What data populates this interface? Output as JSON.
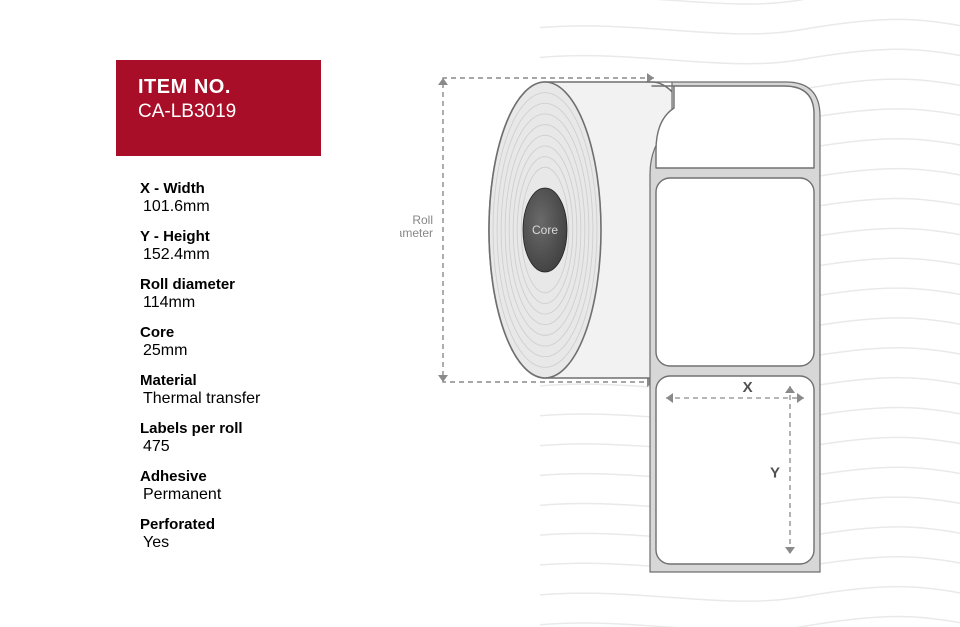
{
  "header": {
    "title": "ITEM NO.",
    "code": "CA-LB3019",
    "bg_color": "#a80e28",
    "text_color": "#ffffff"
  },
  "specs": [
    {
      "label": "X - Width",
      "value": "101.6mm"
    },
    {
      "label": "Y - Height",
      "value": "152.4mm"
    },
    {
      "label": "Roll diameter",
      "value": "114mm"
    },
    {
      "label": "Core",
      "value": "25mm"
    },
    {
      "label": "Material",
      "value": "Thermal transfer"
    },
    {
      "label": "Labels per roll",
      "value": "475"
    },
    {
      "label": "Adhesive",
      "value": "Permanent"
    },
    {
      "label": "Perforated",
      "value": "Yes"
    }
  ],
  "diagram": {
    "annotations": {
      "roll_diameter": "Roll\ndiameter",
      "core": "Core",
      "x": "X",
      "y": "Y"
    },
    "colors": {
      "roll_fill": "#f2f2f2",
      "roll_face": "#e8e8e8",
      "roll_stroke": "#6f6f6f",
      "core_fill": "#3e3e3e",
      "core_highlight": "#6a6a6a",
      "label_fill": "#ffffff",
      "label_stroke": "#707070",
      "dashed_stroke": "#8a8a8a",
      "annotation_text": "#878787",
      "xy_text": "#505050"
    },
    "annotation_fontsize": 12,
    "xy_fontsize": 15
  },
  "background": {
    "wave_stroke": "#e9e9e9",
    "wave_count": 22
  }
}
